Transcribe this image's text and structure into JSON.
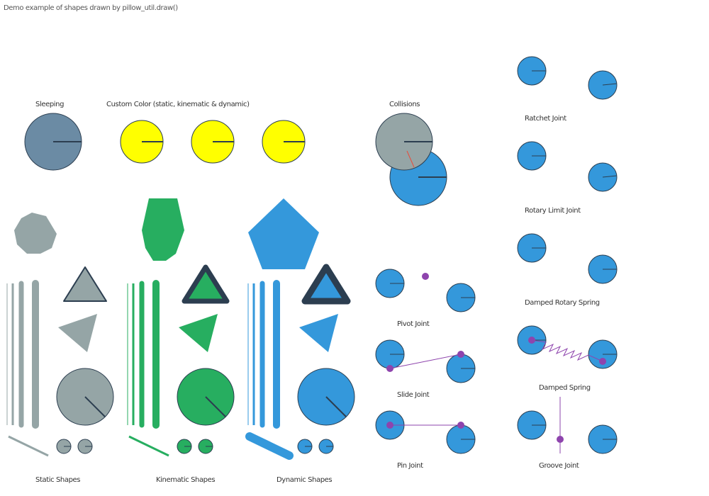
{
  "title": "Demo example of shapes drawn by pillow_util.draw()",
  "labels": {
    "sleeping": "Sleeping",
    "custom_color": "Custom Color (static, kinematic & dynamic)",
    "collisions": "Collisions",
    "ratchet_joint": "Ratchet Joint",
    "rotary_limit_joint": "Rotary Limit Joint",
    "damped_rotary_spring": "Damped Rotary Spring",
    "pivot_joint": "Pivot Joint",
    "damped_spring": "Damped Spring",
    "slide_joint": "Slide Joint",
    "pin_joint": "Pin Joint",
    "groove_joint": "Groove Joint",
    "static_shapes": "Static Shapes",
    "kinematic_shapes": "Kinematic Shapes",
    "dynamic_shapes": "Dynamic Shapes"
  },
  "colors": {
    "sleeping": "#6b8ba4",
    "custom": "#ffff00",
    "static": "#95a5a6",
    "kinematic": "#27ae60",
    "dynamic": "#3498db",
    "outline": "#2c3e50",
    "constraint": "#8e44ad",
    "collision": "#e74c3c"
  }
}
